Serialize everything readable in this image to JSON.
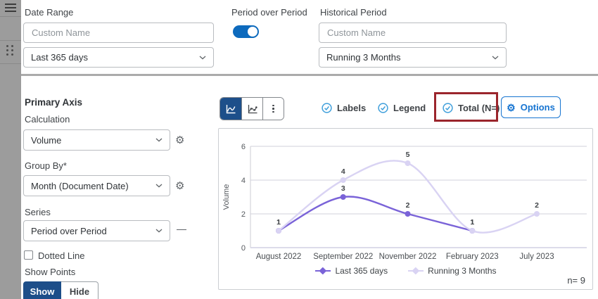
{
  "panel": {
    "date_range": {
      "label": "Date Range",
      "name_placeholder": "Custom Name",
      "value": "Last 365 days"
    },
    "period_over_period": {
      "label": "Period over Period",
      "enabled": true
    },
    "historical_period": {
      "label": "Historical Period",
      "name_placeholder": "Custom Name",
      "value": "Running 3 Months"
    },
    "primary_axis": {
      "title": "Primary Axis",
      "calculation_label": "Calculation",
      "calculation_value": "Volume",
      "group_by_label": "Group By*",
      "group_by_value": "Month (Document Date)",
      "series_label": "Series",
      "series_value": "Period over Period",
      "dotted_line_label": "Dotted Line",
      "dotted_line_checked": false,
      "show_points_label": "Show Points",
      "show_label": "Show",
      "hide_label": "Hide",
      "selected": "Show"
    }
  },
  "toolbar": {
    "toggles": [
      {
        "label": "Labels",
        "checked": true
      },
      {
        "label": "Legend",
        "checked": true
      },
      {
        "label": "Total (N=)",
        "checked": true,
        "highlighted": true
      }
    ],
    "options_label": "Options"
  },
  "chart_data": {
    "type": "line",
    "categories": [
      "August 2022",
      "September 2022",
      "November 2022",
      "February 2023",
      "July 2023"
    ],
    "series": [
      {
        "name": "Last 365 days",
        "color": "#7a63d8",
        "values": [
          1,
          3,
          2,
          1,
          null
        ]
      },
      {
        "name": "Running 3 Months",
        "color": "#d9d3f3",
        "values": [
          1,
          4,
          5,
          1,
          2
        ]
      }
    ],
    "ylabel": "Volume",
    "yticks": [
      0,
      2,
      4,
      6
    ],
    "ylim": [
      0,
      6
    ],
    "grid": true,
    "legend_position": "bottom",
    "n_label": "n= 9"
  },
  "colors": {
    "toggle_blue": "#0d6abd",
    "check_blue": "#3f9fdb",
    "selected_navy": "#1d4f8a",
    "options_blue": "#1674d1",
    "highlight_red": "#9b252c",
    "series_dark": "#7a63d8",
    "series_light": "#d9d3f3"
  }
}
